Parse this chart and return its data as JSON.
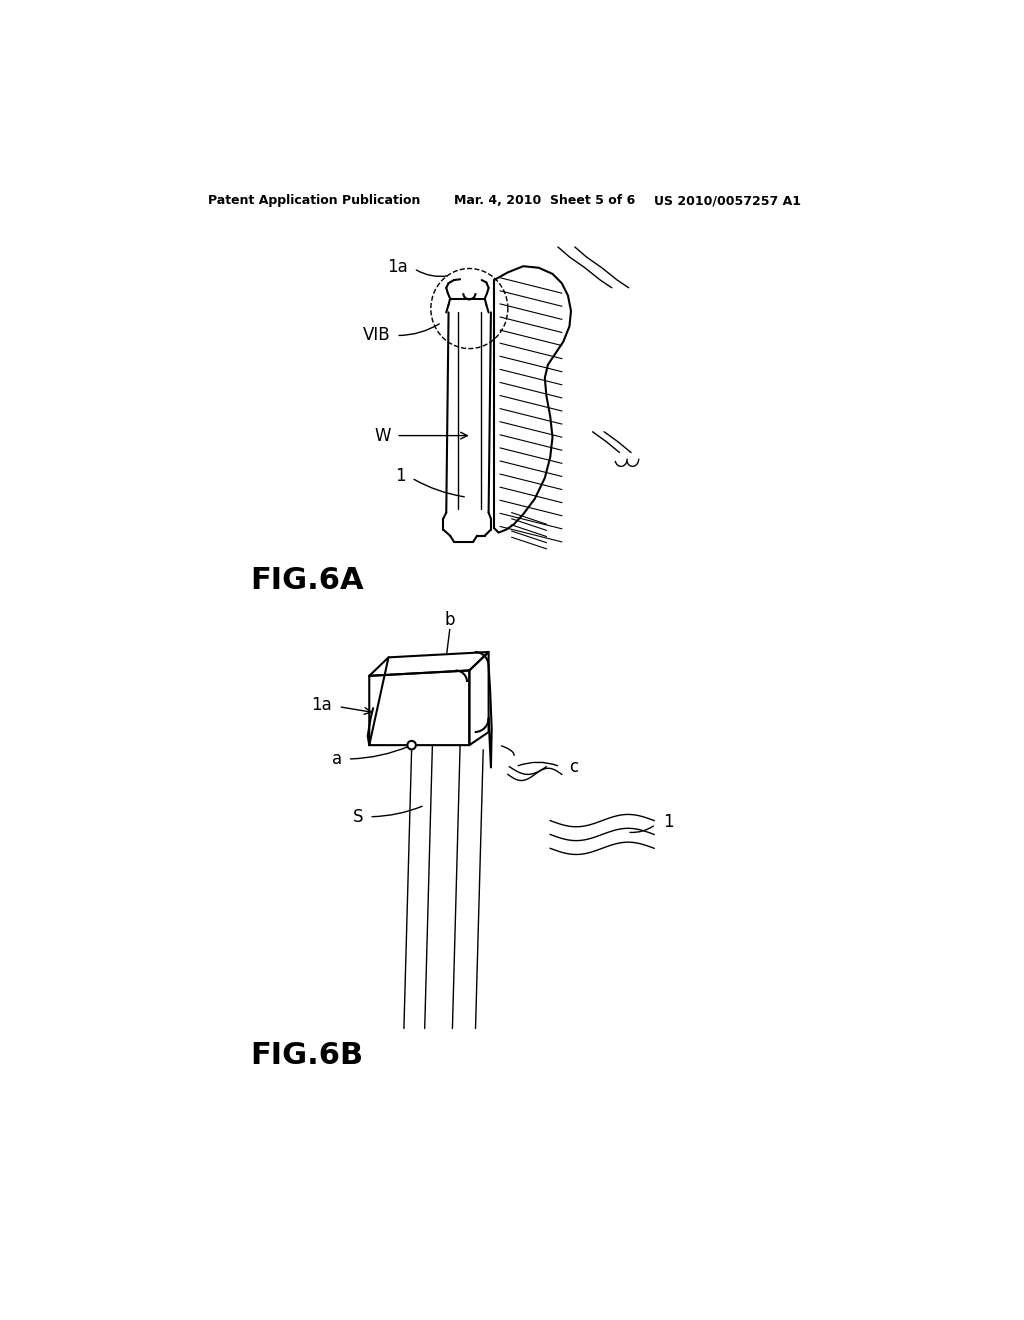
{
  "bg_color": "#ffffff",
  "header_left": "Patent Application Publication",
  "header_mid": "Mar. 4, 2010  Sheet 5 of 6",
  "header_right": "US 2010/0057257 A1",
  "fig6a_label": "FIG.6A",
  "fig6b_label": "FIG.6B",
  "label_1a": "1a",
  "label_VIB": "VIB",
  "label_W": "W",
  "label_1": "1",
  "label_b": "b",
  "label_a": "a",
  "label_S": "S",
  "label_c": "c"
}
